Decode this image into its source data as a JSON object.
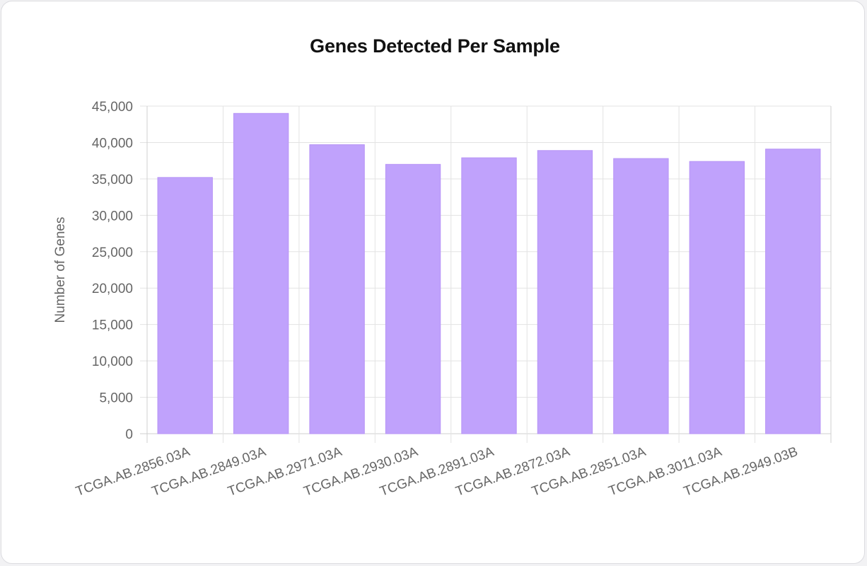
{
  "chart_data": {
    "type": "bar",
    "title": "Genes Detected Per Sample",
    "xlabel": "",
    "ylabel": "Number of Genes",
    "categories": [
      "TCGA.AB.2856.03A",
      "TCGA.AB.2849.03A",
      "TCGA.AB.2971.03A",
      "TCGA.AB.2930.03A",
      "TCGA.AB.2891.03A",
      "TCGA.AB.2872.03A",
      "TCGA.AB.2851.03A",
      "TCGA.AB.3011.03A",
      "TCGA.AB.2949.03B"
    ],
    "values": [
      35200,
      44000,
      39700,
      37000,
      37900,
      38900,
      37800,
      37400,
      39100
    ],
    "ylim": [
      0,
      45000
    ],
    "yticks": [
      0,
      5000,
      10000,
      15000,
      20000,
      25000,
      30000,
      35000,
      40000,
      45000
    ],
    "ytick_labels": [
      "0",
      "5,000",
      "10,000",
      "15,000",
      "20,000",
      "25,000",
      "30,000",
      "35,000",
      "40,000",
      "45,000"
    ],
    "grid": true,
    "legend": "none",
    "colors": {
      "bar_fill": "#c0a2fc",
      "bar_stroke": "#b794f6",
      "grid": "#e3e3e3",
      "axis": "#cfcfcf"
    }
  }
}
